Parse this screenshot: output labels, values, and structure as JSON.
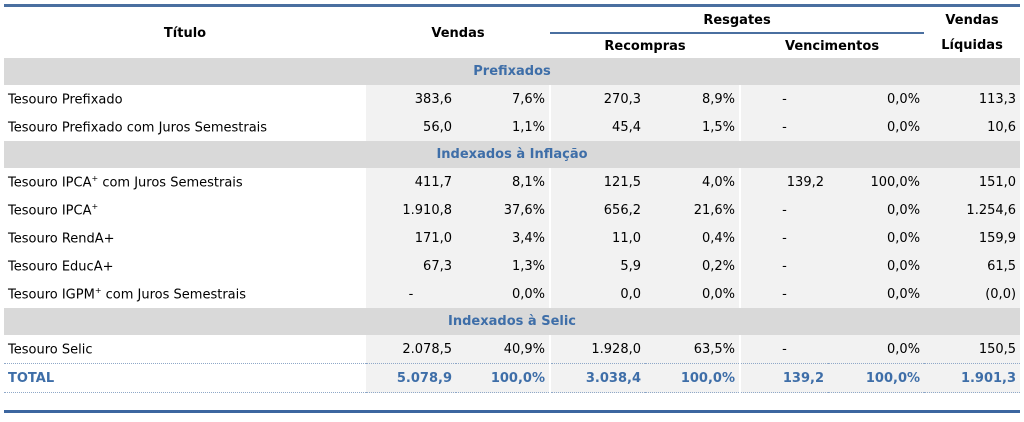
{
  "headers": {
    "titulo": "Título",
    "vendas": "Vendas",
    "resgates": "Resgates",
    "recompras": "Recompras",
    "vencimentos": "Vencimentos",
    "vendas_liquidas_1": "Vendas",
    "vendas_liquidas_2": "Líquidas"
  },
  "sections": [
    {
      "name": "Prefixados",
      "rows": [
        {
          "titulo": "Tesouro Prefixado",
          "sup": "",
          "suffix": "",
          "v": "383,6",
          "vp": "7,6%",
          "r": "270,3",
          "rp": "8,9%",
          "ve": "-",
          "vep": "0,0%",
          "l": "113,3"
        },
        {
          "titulo": "Tesouro Prefixado com Juros Semestrais",
          "sup": "",
          "suffix": "",
          "v": "56,0",
          "vp": "1,1%",
          "r": "45,4",
          "rp": "1,5%",
          "ve": "-",
          "vep": "0,0%",
          "l": "10,6"
        }
      ]
    },
    {
      "name": "Indexados à Inflação",
      "rows": [
        {
          "titulo": "Tesouro IPCA",
          "sup": "+",
          "suffix": " com Juros Semestrais",
          "v": "411,7",
          "vp": "8,1%",
          "r": "121,5",
          "rp": "4,0%",
          "ve": "139,2",
          "vep": "100,0%",
          "l": "151,0"
        },
        {
          "titulo": "Tesouro IPCA",
          "sup": "+",
          "suffix": "",
          "v": "1.910,8",
          "vp": "37,6%",
          "r": "656,2",
          "rp": "21,6%",
          "ve": "-",
          "vep": "0,0%",
          "l": "1.254,6"
        },
        {
          "titulo": "Tesouro RendA+",
          "sup": "",
          "suffix": "",
          "v": "171,0",
          "vp": "3,4%",
          "r": "11,0",
          "rp": "0,4%",
          "ve": "-",
          "vep": "0,0%",
          "l": "159,9"
        },
        {
          "titulo": "Tesouro EducA+",
          "sup": "",
          "suffix": "",
          "v": "67,3",
          "vp": "1,3%",
          "r": "5,9",
          "rp": "0,2%",
          "ve": "-",
          "vep": "0,0%",
          "l": "61,5"
        },
        {
          "titulo": "Tesouro IGPM",
          "sup": "+",
          "suffix": " com Juros Semestrais",
          "v": "-",
          "vp": "0,0%",
          "r": "0,0",
          "rp": "0,0%",
          "ve": "-",
          "vep": "0,0%",
          "l": "(0,0)"
        }
      ]
    },
    {
      "name": "Indexados à Selic",
      "rows": [
        {
          "titulo": "Tesouro Selic",
          "sup": "",
          "suffix": "",
          "v": "2.078,5",
          "vp": "40,9%",
          "r": "1.928,0",
          "rp": "63,5%",
          "ve": "-",
          "vep": "0,0%",
          "l": "150,5"
        }
      ]
    }
  ],
  "total": {
    "titulo": "TOTAL",
    "v": "5.078,9",
    "vp": "100,0%",
    "r": "3.038,4",
    "rp": "100,0%",
    "ve": "139,2",
    "vep": "100,0%",
    "l": "1.901,3"
  }
}
